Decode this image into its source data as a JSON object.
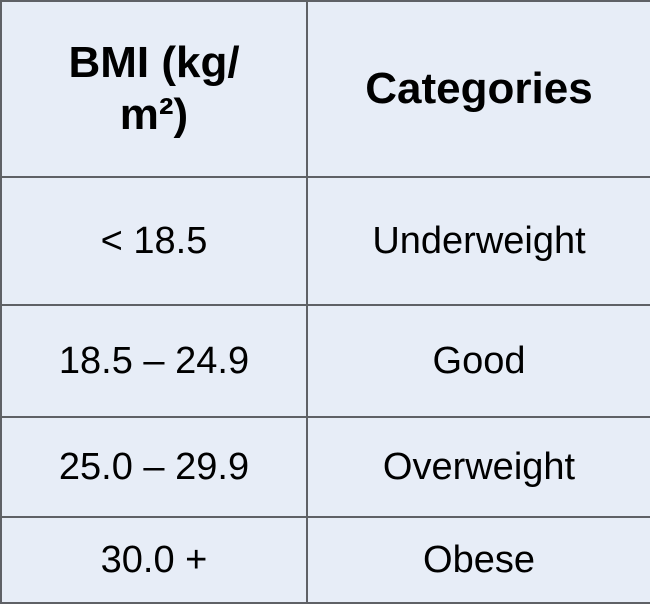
{
  "table": {
    "headers": {
      "bmi_line1": "BMI (kg/",
      "bmi_line2": "m²)",
      "categories": "Categories"
    },
    "rows": [
      {
        "range": "< 18.5",
        "category": "Underweight"
      },
      {
        "range": "18.5 – 24.9",
        "category": "Good"
      },
      {
        "range": "25.0 – 29.9",
        "category": "Overweight"
      },
      {
        "range": "30.0 +",
        "category": "Obese"
      }
    ]
  },
  "colors": {
    "cell_background": "#e7edf7",
    "border": "#5f6166",
    "text": "#000000"
  }
}
